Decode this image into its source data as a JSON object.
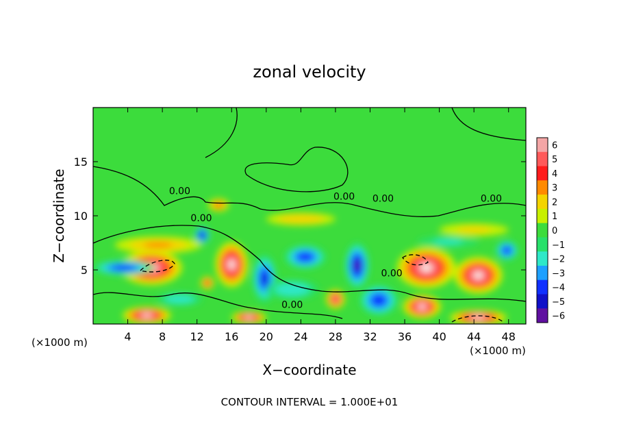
{
  "chart_data": {
    "type": "heatmap",
    "title": "zonal velocity",
    "xlabel": "X−coordinate",
    "ylabel": "Z−coordinate",
    "x_unit_left": "(×1000 m)",
    "x_unit_right": "(×1000 m)",
    "footer": "CONTOUR INTERVAL = 1.000E+01",
    "xlim": [
      0,
      50
    ],
    "ylim": [
      0,
      20
    ],
    "x_ticks": [
      4,
      8,
      12,
      16,
      20,
      24,
      28,
      32,
      36,
      40,
      44,
      48
    ],
    "y_ticks": [
      5,
      10,
      15
    ],
    "colorbar": {
      "levels": [
        6,
        5,
        4,
        3,
        2,
        1,
        0,
        -1,
        -2,
        -3,
        -4,
        -5,
        -6
      ],
      "labels": [
        "6",
        "5",
        "4",
        "3",
        "2",
        "1",
        "0",
        "−1",
        "−2",
        "−3",
        "−4",
        "−5",
        "−6"
      ],
      "colors": [
        "#f4a6a6",
        "#ff5a5a",
        "#ff1c1c",
        "#ff8a00",
        "#f4d400",
        "#c8f000",
        "#3cdc3c",
        "#28e06a",
        "#2fe8c8",
        "#1ea0ff",
        "#1030ff",
        "#1010c8",
        "#6010a0"
      ]
    },
    "contour_labels": [
      {
        "text": "0.00",
        "x": 10,
        "z": 12
      },
      {
        "text": "0.00",
        "x": 12.5,
        "z": 9.5
      },
      {
        "text": "0.00",
        "x": 29,
        "z": 11.5
      },
      {
        "text": "0.00",
        "x": 33.5,
        "z": 11.3
      },
      {
        "text": "0.00",
        "x": 46,
        "z": 11.3
      },
      {
        "text": "0.00",
        "x": 34.5,
        "z": 4.4
      },
      {
        "text": "0.00",
        "x": 23,
        "z": 1.5
      }
    ],
    "features": [
      {
        "x": 6.7,
        "z": 5.2,
        "rx": 3.6,
        "rz": 1.6,
        "v": 7
      },
      {
        "x": 16,
        "z": 5.5,
        "rx": 1.9,
        "rz": 2.1,
        "v": 7
      },
      {
        "x": 38.5,
        "z": 5.2,
        "rx": 3.4,
        "rz": 1.9,
        "v": 7
      },
      {
        "x": 44.5,
        "z": 4.5,
        "rx": 2.8,
        "rz": 1.7,
        "v": 6.5
      },
      {
        "x": 38,
        "z": 1.6,
        "rx": 2.2,
        "rz": 1.1,
        "v": 7
      },
      {
        "x": 28,
        "z": 2.3,
        "rx": 1.1,
        "rz": 0.9,
        "v": 6
      },
      {
        "x": 6.2,
        "z": 0.8,
        "rx": 2.8,
        "rz": 0.8,
        "v": 6.5
      },
      {
        "x": 18,
        "z": 0.6,
        "rx": 2,
        "rz": 0.6,
        "v": 6.5
      },
      {
        "x": 44.5,
        "z": 0.6,
        "rx": 3.3,
        "rz": 0.7,
        "v": 6.5
      },
      {
        "x": 13.2,
        "z": 3.8,
        "rx": 0.8,
        "rz": 0.6,
        "v": 5
      },
      {
        "x": 14.5,
        "z": 11,
        "rx": 1.2,
        "rz": 0.6,
        "v": 4
      },
      {
        "x": 7.5,
        "z": 7.3,
        "rx": 5,
        "rz": 0.8,
        "v": 2.5
      },
      {
        "x": 24,
        "z": 9.7,
        "rx": 4,
        "rz": 0.6,
        "v": 2.3
      },
      {
        "x": 44,
        "z": 8.7,
        "rx": 4,
        "rz": 0.6,
        "v": 1.8
      },
      {
        "x": 12.6,
        "z": 8.2,
        "rx": 0.9,
        "rz": 0.8,
        "v": -5.5
      },
      {
        "x": 3.5,
        "z": 5.2,
        "rx": 3.5,
        "rz": 0.7,
        "v": -4.5
      },
      {
        "x": 19.8,
        "z": 4.2,
        "rx": 1.4,
        "rz": 2.2,
        "v": -5
      },
      {
        "x": 24.5,
        "z": 6.2,
        "rx": 2.4,
        "rz": 1.1,
        "v": -4.5
      },
      {
        "x": 30.5,
        "z": 5.4,
        "rx": 1.4,
        "rz": 2.1,
        "v": -6
      },
      {
        "x": 33,
        "z": 2.2,
        "rx": 2.2,
        "rz": 1.4,
        "v": -4.5
      },
      {
        "x": 47.8,
        "z": 6.8,
        "rx": 1.3,
        "rz": 0.9,
        "v": -4.5
      },
      {
        "x": 23,
        "z": 3.2,
        "rx": 3,
        "rz": 0.9,
        "v": -2.3
      },
      {
        "x": 10,
        "z": 2.3,
        "rx": 2.6,
        "rz": 0.6,
        "v": -2.5
      },
      {
        "x": 41,
        "z": 7.6,
        "rx": 3.5,
        "rz": 0.5,
        "v": -2
      }
    ]
  }
}
